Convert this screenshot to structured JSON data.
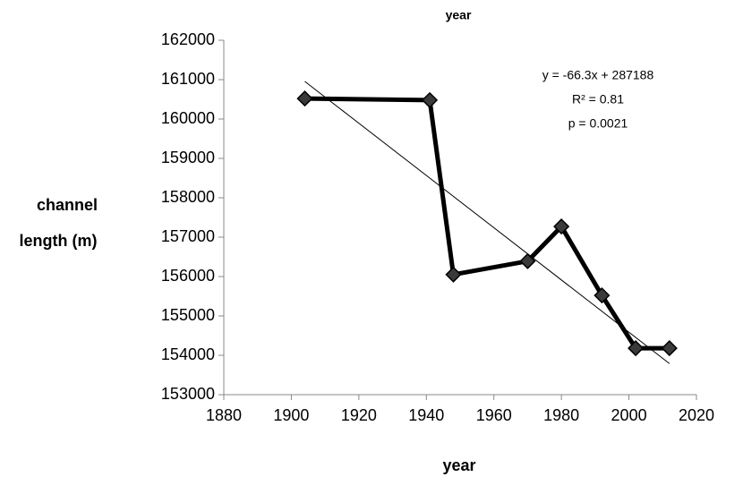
{
  "chart_data": {
    "type": "line",
    "title": "year",
    "x": [
      1904,
      1941,
      1948,
      1970,
      1980,
      1992,
      2002,
      2012
    ],
    "series": [
      {
        "color": "#000000",
        "marker_color": "#3a3a3a",
        "values": [
          160520,
          160480,
          156050,
          156390,
          157270,
          155520,
          154180,
          154180
        ]
      }
    ],
    "trendline": {
      "x": [
        1904,
        2012
      ],
      "values": [
        160955,
        153790
      ],
      "color": "#000000"
    },
    "xlabel": "year",
    "ylabel": [
      "channel",
      "length (m)"
    ],
    "xlim": [
      1880,
      2020
    ],
    "xticks": [
      1880,
      1900,
      1920,
      1940,
      1960,
      1980,
      2000,
      2020
    ],
    "ylim": [
      153000,
      162000
    ],
    "yticks": [
      153000,
      154000,
      155000,
      156000,
      157000,
      158000,
      159000,
      160000,
      161000,
      162000
    ],
    "annotations": [
      "y = -66.3x + 287188",
      "R² = 0.81",
      "p = 0.0021"
    ]
  }
}
